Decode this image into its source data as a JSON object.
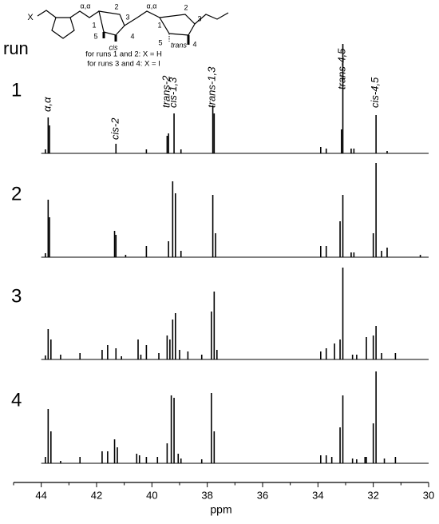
{
  "structure": {
    "labels": [
      "X",
      "α,α",
      "1",
      "2",
      "3",
      "5",
      "cis",
      "4",
      "α,α",
      "1",
      "2",
      "3",
      "5",
      "trans",
      "4"
    ],
    "notes": [
      "for runs 1 and 2: X = H",
      "for runs 3 and 4: X = I"
    ]
  },
  "chart_data": {
    "type": "stick",
    "run_label": "run",
    "xlabel": "ppm",
    "xlim": [
      45,
      30
    ],
    "xticks": [
      44,
      42,
      40,
      38,
      36,
      34,
      32,
      30
    ],
    "xminorticks": [
      45,
      43,
      41,
      39,
      37,
      35,
      33,
      31
    ],
    "ylim": [
      0,
      140
    ],
    "color": "#000000",
    "annotations": [
      {
        "text": "α,α",
        "x": 43.75
      },
      {
        "text": "cis-2",
        "x": 41.3
      },
      {
        "text": "trans-2",
        "x": 39.45
      },
      {
        "text": "cis-1,3",
        "x": 39.2
      },
      {
        "text": "trans-1,3",
        "x": 37.8
      },
      {
        "text": "trans-4,5",
        "x": 33.1
      },
      {
        "text": "cis-4,5",
        "x": 31.9
      }
    ],
    "series": [
      {
        "name": "1",
        "x": [
          43.85,
          43.75,
          43.7,
          41.3,
          40.2,
          39.45,
          39.4,
          39.2,
          38.95,
          37.8,
          37.75,
          33.9,
          33.7,
          33.15,
          33.1,
          32.8,
          32.7,
          31.9,
          31.5
        ],
        "values": [
          5,
          45,
          35,
          12,
          5,
          22,
          25,
          50,
          5,
          60,
          50,
          8,
          6,
          30,
          137,
          6,
          6,
          48,
          3
        ]
      },
      {
        "name": "2",
        "x": [
          43.85,
          43.75,
          43.7,
          41.35,
          41.3,
          40.95,
          40.2,
          39.4,
          39.25,
          39.15,
          38.95,
          37.8,
          37.7,
          33.9,
          33.7,
          33.2,
          33.1,
          32.8,
          32.7,
          32.0,
          31.9,
          31.7,
          31.5,
          30.3
        ],
        "values": [
          5,
          72,
          50,
          33,
          28,
          3,
          14,
          20,
          95,
          80,
          8,
          78,
          30,
          14,
          14,
          45,
          78,
          6,
          6,
          30,
          118,
          8,
          12,
          3
        ]
      },
      {
        "name": "3",
        "x": [
          43.85,
          43.75,
          43.65,
          43.3,
          42.6,
          41.8,
          41.6,
          41.3,
          41.1,
          40.5,
          40.4,
          40.2,
          39.75,
          39.45,
          39.35,
          39.25,
          39.15,
          39.0,
          38.7,
          38.2,
          37.85,
          37.75,
          37.65,
          33.9,
          33.7,
          33.4,
          33.2,
          33.1,
          32.75,
          32.6,
          32.25,
          32.0,
          31.9,
          31.7,
          31.2
        ],
        "values": [
          5,
          38,
          25,
          6,
          8,
          12,
          18,
          14,
          4,
          25,
          6,
          18,
          8,
          30,
          25,
          50,
          58,
          12,
          10,
          6,
          60,
          85,
          12,
          10,
          14,
          20,
          25,
          115,
          6,
          6,
          28,
          30,
          42,
          8,
          8
        ]
      },
      {
        "name": "4",
        "x": [
          43.85,
          43.75,
          43.65,
          43.3,
          42.6,
          41.8,
          41.6,
          41.35,
          41.25,
          40.55,
          40.45,
          40.2,
          39.8,
          39.45,
          39.3,
          39.2,
          39.05,
          38.95,
          38.2,
          37.85,
          37.75,
          33.9,
          33.7,
          33.5,
          33.2,
          33.1,
          32.75,
          32.6,
          32.3,
          32.25,
          32.0,
          31.9,
          31.6,
          31.2
        ],
        "values": [
          8,
          68,
          40,
          3,
          8,
          15,
          15,
          30,
          20,
          12,
          10,
          8,
          8,
          25,
          85,
          82,
          12,
          6,
          5,
          88,
          40,
          10,
          10,
          8,
          45,
          85,
          6,
          5,
          8,
          8,
          50,
          115,
          6,
          8
        ]
      }
    ]
  }
}
